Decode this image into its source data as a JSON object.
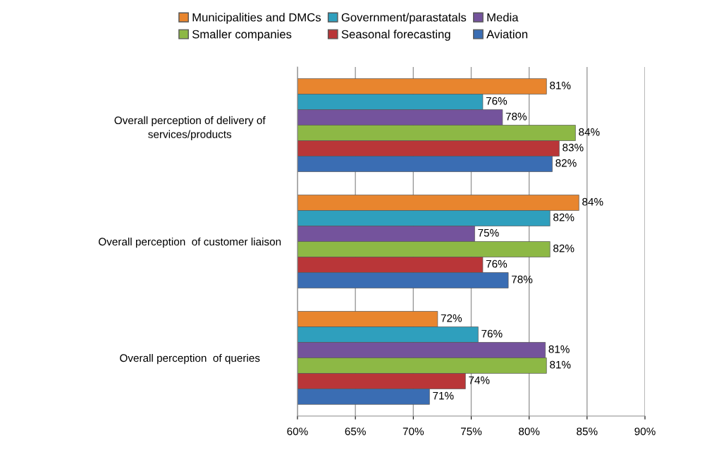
{
  "chart_data": {
    "type": "bar",
    "orientation": "horizontal",
    "categories": [
      "Overall perception of delivery of\nservices/products",
      "Overall perception  of customer liaison",
      "Overall perception  of queries"
    ],
    "series": [
      {
        "name": "Municipalities and DMCs",
        "color": "#e8852e",
        "values": [
          81.5,
          84.3,
          72.1
        ],
        "value_labels": [
          "81%",
          "84%",
          "72%"
        ]
      },
      {
        "name": "Government/parastatals",
        "color": "#2f9fbd",
        "values": [
          76.0,
          81.8,
          75.6
        ],
        "value_labels": [
          "76%",
          "82%",
          "76%"
        ]
      },
      {
        "name": "Media",
        "color": "#74539c",
        "values": [
          77.7,
          75.3,
          81.4
        ],
        "value_labels": [
          "78%",
          "75%",
          "81%"
        ]
      },
      {
        "name": "Smaller companies",
        "color": "#8db845",
        "values": [
          84.0,
          81.8,
          81.5
        ],
        "value_labels": [
          "84%",
          "82%",
          "81%"
        ]
      },
      {
        "name": "Seasonal forecasting",
        "color": "#b93638",
        "values": [
          82.6,
          76.0,
          74.5
        ],
        "value_labels": [
          "83%",
          "76%",
          "74%"
        ]
      },
      {
        "name": "Aviation",
        "color": "#3a6db3",
        "values": [
          82.0,
          78.2,
          71.4
        ],
        "value_labels": [
          "82%",
          "78%",
          "71%"
        ]
      }
    ],
    "xlim": [
      60,
      90
    ],
    "xticks": [
      {
        "value": 60,
        "label": "60%"
      },
      {
        "value": 65,
        "label": "65%"
      },
      {
        "value": 70,
        "label": "70%"
      },
      {
        "value": 75,
        "label": "75%"
      },
      {
        "value": 80,
        "label": "80%"
      },
      {
        "value": 85,
        "label": "85%"
      },
      {
        "value": 90,
        "label": "90%"
      }
    ],
    "grid": "x",
    "legend": "top"
  }
}
